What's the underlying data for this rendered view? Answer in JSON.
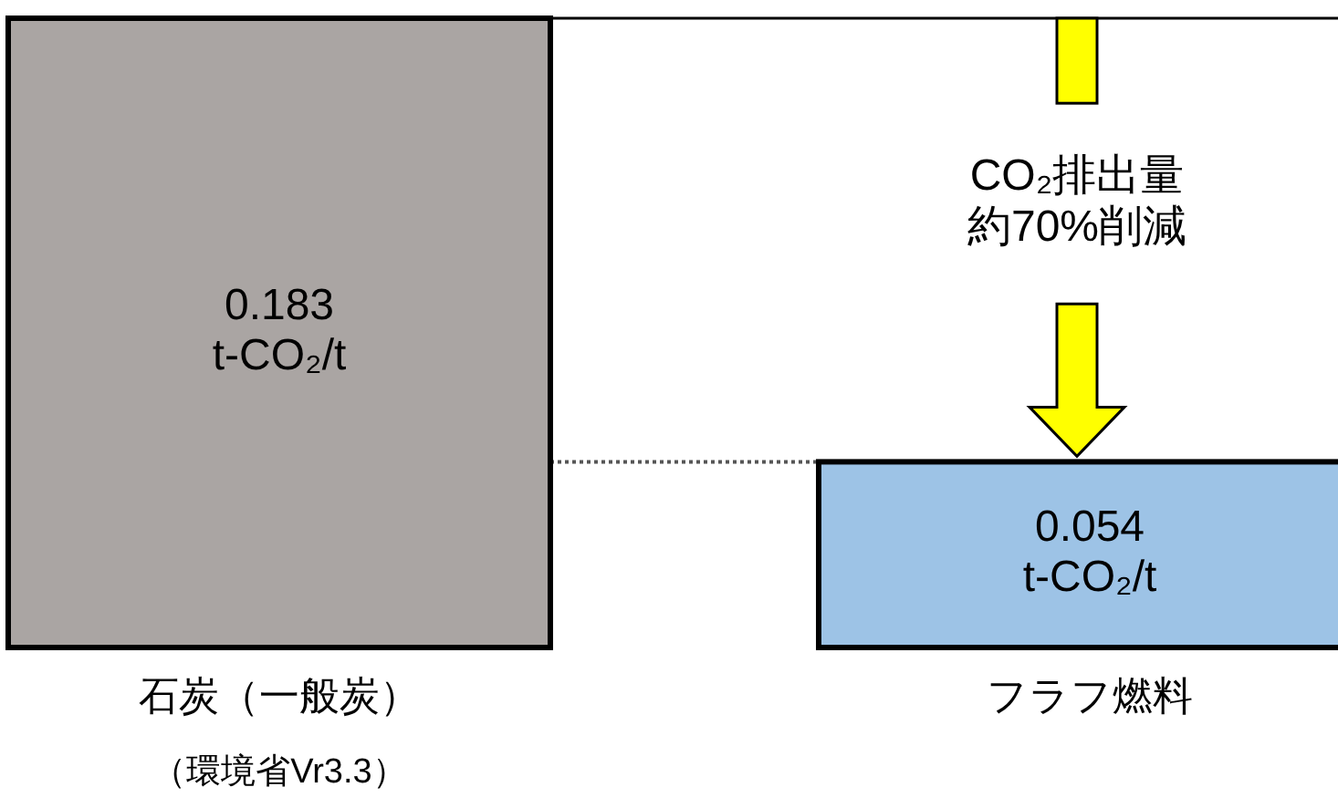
{
  "chart_data": {
    "type": "bar",
    "categories": [
      "石炭（一般炭）",
      "フラフ燃料"
    ],
    "values": [
      0.183,
      0.054
    ],
    "colors": [
      "#aaa5a3",
      "#9dc3e6"
    ],
    "value_labels": [
      "0.183\nt-CO₂/t",
      "0.054\nt-CO₂/t"
    ],
    "ref_lines": [
      {
        "axis": "y",
        "value": 0.183,
        "color": "#000000",
        "line_style": "solid"
      },
      {
        "axis": "y",
        "value": 0.054,
        "color": "#555555",
        "line_style": "dotted"
      }
    ],
    "annotations": [
      "CO₂排出量",
      "約70%削減",
      "（環境省Vr3.3）"
    ]
  }
}
